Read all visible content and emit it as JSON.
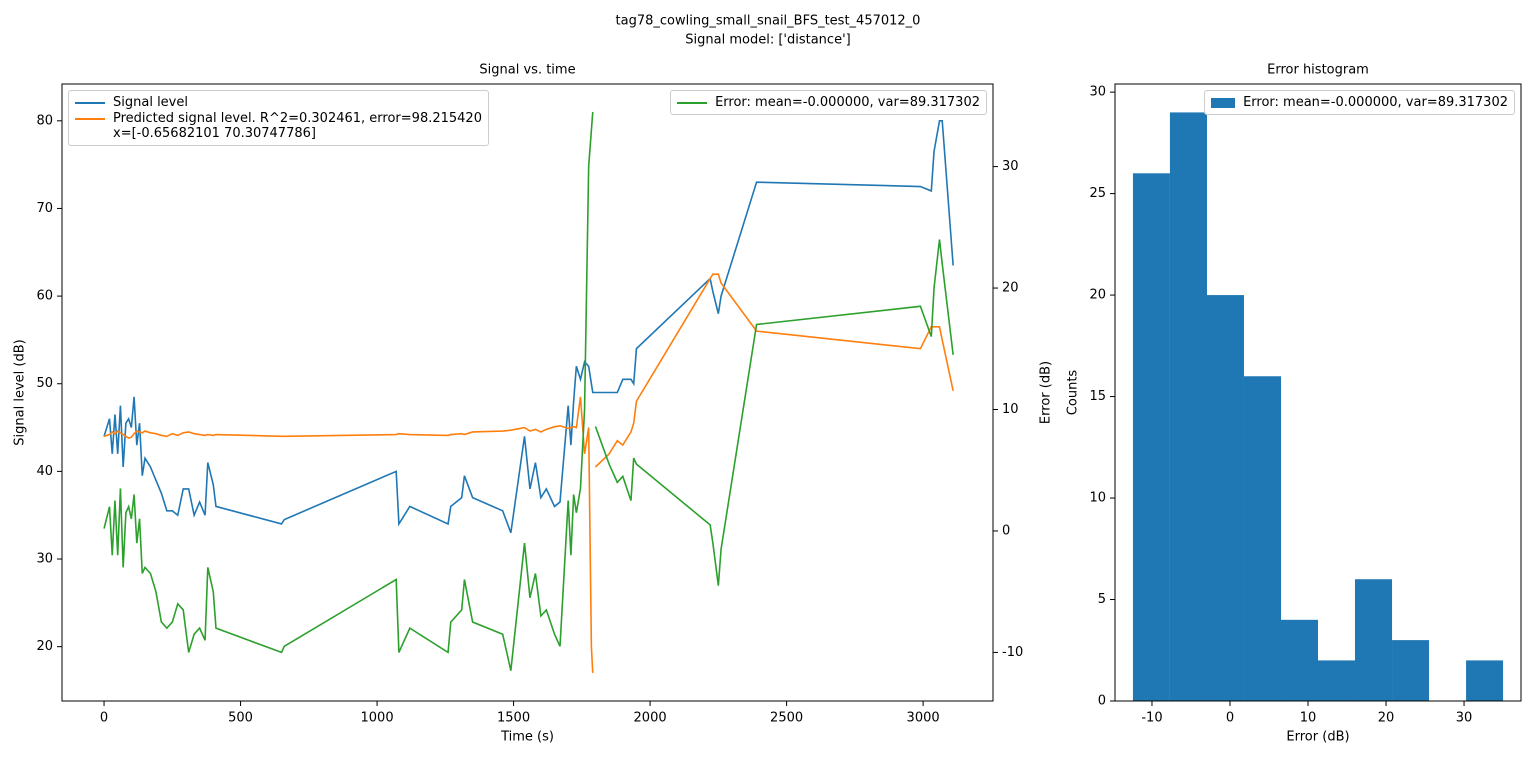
{
  "suptitle": [
    "tag78_cowling_small_snail_BFS_test_457012_0",
    "Signal model: ['distance']"
  ],
  "chart_data": [
    {
      "type": "line",
      "title": "Signal vs. time",
      "xlabel": "Time (s)",
      "ylabel": "Signal level (dB)",
      "y2label": "Error (dB)",
      "xlim": [
        -154,
        3256
      ],
      "ylim": [
        13.8,
        84.2
      ],
      "y2lim": [
        -14.0,
        36.8
      ],
      "xticks": [
        0,
        500,
        1000,
        1500,
        2000,
        2500,
        3000
      ],
      "yticks": [
        20,
        30,
        40,
        50,
        60,
        70,
        80
      ],
      "y2ticks": [
        -10,
        0,
        10,
        20,
        30
      ],
      "x": [
        0,
        20,
        30,
        40,
        50,
        60,
        70,
        80,
        90,
        100,
        110,
        120,
        130,
        140,
        150,
        170,
        190,
        210,
        230,
        250,
        270,
        290,
        310,
        330,
        350,
        370,
        380,
        400,
        410,
        650,
        660,
        1070,
        1080,
        1120,
        1260,
        1270,
        1310,
        1320,
        1350,
        1460,
        1490,
        1540,
        1560,
        1580,
        1600,
        1620,
        1650,
        1670,
        1700,
        1710,
        1720,
        1730,
        1745,
        1760,
        1775,
        1785,
        1790,
        1795,
        1800,
        1850,
        1880,
        1900,
        1930,
        1940,
        1950,
        2220,
        2230,
        2250,
        2260,
        2390,
        2990,
        3030,
        3040,
        3060,
        3070,
        3110
      ],
      "series": [
        {
          "name": "Signal level",
          "color": "#1f77b4",
          "legend": "upper left",
          "values": [
            44,
            46,
            42,
            46.5,
            42,
            47.5,
            40.5,
            45.5,
            46,
            45,
            48.5,
            43,
            45.5,
            39.5,
            41.5,
            40.5,
            39,
            37.5,
            35.5,
            35.5,
            35,
            38,
            38,
            35,
            36.5,
            35,
            41,
            38.5,
            36,
            34,
            34.5,
            40,
            34,
            36,
            34,
            36,
            37,
            39.5,
            37,
            35.5,
            33,
            44,
            38,
            41,
            37,
            38,
            36,
            36.5,
            47.5,
            43,
            48,
            52,
            50.5,
            52.5,
            52,
            50,
            49,
            49,
            49,
            49,
            49,
            50.5,
            50.5,
            50,
            54,
            62,
            60.5,
            58,
            60,
            73,
            72.5,
            72,
            76.5,
            80,
            80,
            63.5
          ]
        },
        {
          "name": "Predicted signal level. R^2=0.302461, error=98.215420\nx=[-0.65682101 70.30747786]",
          "color": "#ff7f0e",
          "legend": "upper left",
          "values": [
            44,
            44.2,
            44.5,
            44.3,
            44.6,
            44.4,
            44.2,
            44,
            43.8,
            43.9,
            44.3,
            44.6,
            44.5,
            44.4,
            44.6,
            44.4,
            44.3,
            44.1,
            44,
            44.3,
            44.1,
            44.4,
            44.5,
            44.3,
            44.2,
            44.1,
            44.2,
            44.1,
            44.2,
            44,
            44,
            44.2,
            44.3,
            44.2,
            44.1,
            44.2,
            44.3,
            44.2,
            44.5,
            44.6,
            44.7,
            45,
            44.6,
            44.8,
            44.5,
            44.8,
            45.1,
            45.2,
            44.9,
            45,
            45.1,
            45,
            48.5,
            42,
            45,
            20,
            17,
            null,
            40.5,
            42,
            43.5,
            43,
            44.5,
            45.5,
            48,
            62,
            62.5,
            62.5,
            61.5,
            56,
            54,
            56.5,
            56.5,
            56.5,
            55,
            49.2
          ]
        },
        {
          "name": "Error: mean=-0.000000, var=89.317302",
          "color": "#2ca02c",
          "axis": "y2",
          "legend": "upper right",
          "values": [
            0.2,
            2,
            -2,
            2.5,
            -2,
            3.5,
            -3,
            1.5,
            2,
            1,
            3,
            -1,
            1,
            -3.5,
            -3,
            -3.5,
            -5,
            -7.5,
            -8,
            -7.5,
            -6,
            -6.5,
            -10,
            -8.5,
            -8,
            -9,
            -3,
            -5,
            -8,
            -10,
            -9.5,
            -4,
            -10,
            -8,
            -10,
            -7.5,
            -6.5,
            -4,
            -7.5,
            -8.5,
            -11.5,
            -1,
            -5.5,
            -3.5,
            -7,
            -6.5,
            -8.5,
            -9.5,
            2.5,
            -2,
            3,
            1.5,
            3.5,
            10,
            30,
            33,
            34.5,
            null,
            8.6,
            5.5,
            4,
            4.5,
            2.5,
            6,
            5.5,
            0.5,
            -1,
            -4.5,
            -1.5,
            17,
            18.5,
            16,
            20,
            24,
            22,
            14.5
          ]
        }
      ]
    },
    {
      "type": "histogram",
      "title": "Error histogram",
      "xlabel": "Error (dB)",
      "ylabel": "Counts",
      "xlim": [
        -14.74,
        37.3
      ],
      "ylim": [
        0,
        30.4
      ],
      "xticks": [
        -10,
        0,
        10,
        20,
        30
      ],
      "yticks": [
        0,
        5,
        10,
        15,
        20,
        25,
        30
      ],
      "bins": [
        -12.44,
        -7.7,
        -2.95,
        1.79,
        6.54,
        11.28,
        16.02,
        20.77,
        25.51,
        30.26,
        35.0
      ],
      "series": [
        {
          "name": "Error: mean=-0.000000, var=89.317302",
          "color": "#1f77b4",
          "legend": "upper right",
          "values": [
            26,
            29,
            20,
            16,
            4,
            2,
            6,
            3,
            0,
            2
          ]
        }
      ]
    }
  ]
}
